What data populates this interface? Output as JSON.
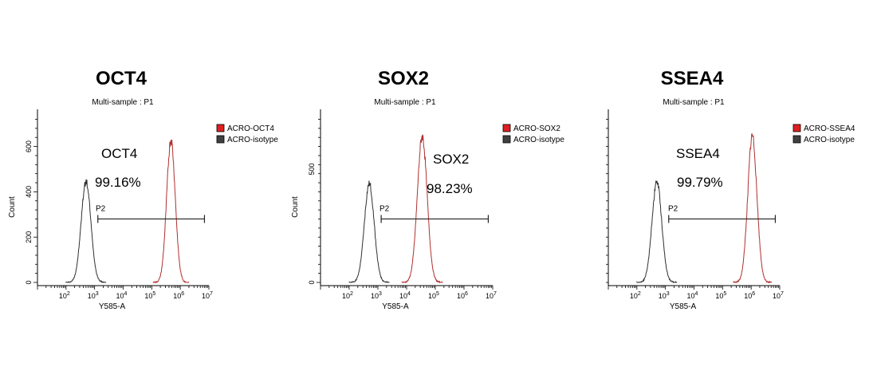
{
  "chart_data": [
    {
      "type": "line",
      "title": "OCT4",
      "subtitle": "Multi-sample : P1",
      "xlabel": "Y585-A",
      "ylabel": "Count",
      "x_scale": "log",
      "xlim": [
        10,
        10000000
      ],
      "ylim": [
        0,
        750
      ],
      "xticks": [
        {
          "base": "10",
          "exp": "2"
        },
        {
          "base": "10",
          "exp": "3"
        },
        {
          "base": "10",
          "exp": "4"
        },
        {
          "base": "10",
          "exp": "5"
        },
        {
          "base": "10",
          "exp": "6"
        },
        {
          "base": "10",
          "exp": "7"
        }
      ],
      "yticks": [
        "0",
        "200",
        "400",
        "600"
      ],
      "ytick_values": [
        0,
        200,
        400,
        600
      ],
      "legend": [
        {
          "label": "ACRO-OCT4",
          "color": "#e02020"
        },
        {
          "label": "ACRO-isotype",
          "color": "#404040"
        }
      ],
      "legend_position": "top-right",
      "annotation": {
        "marker": "OCT4",
        "percent": "99.16%"
      },
      "gate": {
        "label": "P2",
        "from": 1300,
        "to": 7000000,
        "level": 340
      },
      "series": [
        {
          "name": "ACRO-isotype",
          "color": "#303030",
          "peak_x": 500,
          "peak_count": 445,
          "log_sd": 0.17
        },
        {
          "name": "ACRO-OCT4",
          "color": "#b03030",
          "peak_x": 470000,
          "peak_count": 630,
          "log_sd": 0.15
        }
      ]
    },
    {
      "type": "line",
      "title": "SOX2",
      "subtitle": "Multi-sample : P1",
      "xlabel": "Y585-A",
      "ylabel": "Count",
      "x_scale": "log",
      "xlim": [
        10,
        10000000
      ],
      "ylim": [
        0,
        750
      ],
      "xticks": [
        {
          "base": "10",
          "exp": "2"
        },
        {
          "base": "10",
          "exp": "3"
        },
        {
          "base": "10",
          "exp": "4"
        },
        {
          "base": "10",
          "exp": "5"
        },
        {
          "base": "10",
          "exp": "6"
        },
        {
          "base": "10",
          "exp": "7"
        }
      ],
      "yticks": [
        "0",
        "500"
      ],
      "ytick_values": [
        0,
        500
      ],
      "legend": [
        {
          "label": "ACRO-SOX2",
          "color": "#e02020"
        },
        {
          "label": "ACRO-isotype",
          "color": "#404040"
        }
      ],
      "legend_position": "top-right",
      "annotation": {
        "marker": "SOX2",
        "percent": "98.23%"
      },
      "gate": {
        "label": "P2",
        "from": 1300,
        "to": 7000000,
        "level": 340
      },
      "series": [
        {
          "name": "ACRO-isotype",
          "color": "#303030",
          "peak_x": 500,
          "peak_count": 435,
          "log_sd": 0.17
        },
        {
          "name": "ACRO-SOX2",
          "color": "#b03030",
          "peak_x": 35000,
          "peak_count": 645,
          "log_sd": 0.17
        }
      ]
    },
    {
      "type": "line",
      "title": "SSEA4",
      "subtitle": "Multi-sample : P1",
      "xlabel": "Y585-A",
      "ylabel": "",
      "x_scale": "log",
      "xlim": [
        10,
        10000000
      ],
      "ylim": [
        0,
        750
      ],
      "xticks": [
        {
          "base": "10",
          "exp": "2"
        },
        {
          "base": "10",
          "exp": "3"
        },
        {
          "base": "10",
          "exp": "4"
        },
        {
          "base": "10",
          "exp": "5"
        },
        {
          "base": "10",
          "exp": "6"
        },
        {
          "base": "10",
          "exp": "7"
        }
      ],
      "yticks": [],
      "ytick_values": [],
      "legend": [
        {
          "label": "ACRO-SSEA4",
          "color": "#e02020"
        },
        {
          "label": "ACRO-isotype",
          "color": "#404040"
        }
      ],
      "legend_position": "top-right",
      "annotation": {
        "marker": "SSEA4",
        "percent": "99.79%"
      },
      "gate": {
        "label": "P2",
        "from": 1300,
        "to": 7000000,
        "level": 340
      },
      "series": [
        {
          "name": "ACRO-isotype",
          "color": "#303030",
          "peak_x": 500,
          "peak_count": 445,
          "log_sd": 0.17
        },
        {
          "name": "ACRO-SSEA4",
          "color": "#b03030",
          "peak_x": 1100000,
          "peak_count": 645,
          "log_sd": 0.16
        }
      ]
    }
  ]
}
